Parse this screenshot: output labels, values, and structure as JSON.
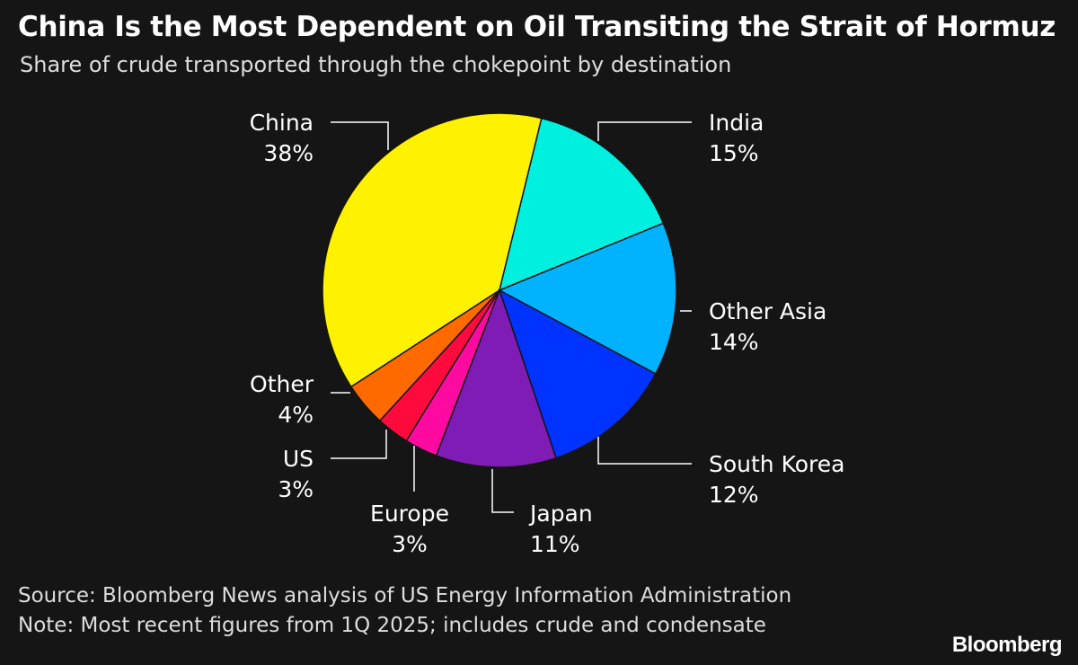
{
  "title": "China Is the Most Dependent on Oil Transiting the Strait of Hormuz",
  "subtitle": "Share of crude transported through the chokepoint by destination",
  "source": "Source: Bloomberg News analysis of US Energy Information Administration",
  "note": "Note: Most recent figures from 1Q 2025; includes crude and condensate",
  "logo": "Bloomberg",
  "chart_data": {
    "type": "pie",
    "title": "China Is the Most Dependent on Oil Transiting the Strait of Hormuz",
    "subtitle": "Share of crude transported through the chokepoint by destination",
    "unit": "%",
    "slices": [
      {
        "label": "China",
        "value": 38,
        "value_label": "38%",
        "color": "#fff200"
      },
      {
        "label": "India",
        "value": 15,
        "value_label": "15%",
        "color": "#00f0e0"
      },
      {
        "label": "Other Asia",
        "value": 14,
        "value_label": "14%",
        "color": "#00b2ff"
      },
      {
        "label": "South Korea",
        "value": 12,
        "value_label": "12%",
        "color": "#0033ff"
      },
      {
        "label": "Japan",
        "value": 11,
        "value_label": "11%",
        "color": "#7f1cb5"
      },
      {
        "label": "Europe",
        "value": 3,
        "value_label": "3%",
        "color": "#ff0aa0"
      },
      {
        "label": "US",
        "value": 3,
        "value_label": "3%",
        "color": "#ff0a3c"
      },
      {
        "label": "Other",
        "value": 4,
        "value_label": "4%",
        "color": "#ff6a00"
      }
    ]
  }
}
